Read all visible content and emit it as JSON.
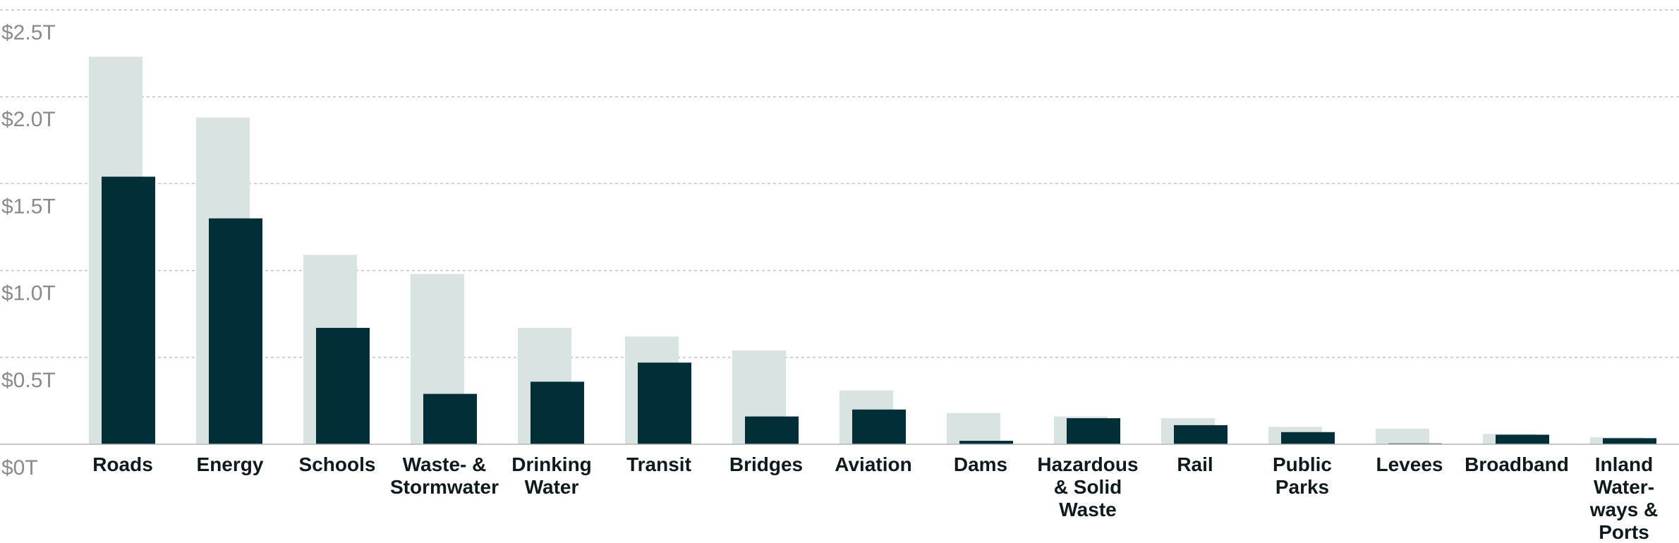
{
  "chart_data": {
    "type": "bar",
    "categories": [
      [
        "Roads"
      ],
      [
        "Energy"
      ],
      [
        "Schools"
      ],
      [
        "Waste- &",
        "Stormwater"
      ],
      [
        "Drinking",
        "Water"
      ],
      [
        "Transit"
      ],
      [
        "Bridges"
      ],
      [
        "Aviation"
      ],
      [
        "Dams"
      ],
      [
        "Hazardous",
        "& Solid",
        "Waste"
      ],
      [
        "Rail"
      ],
      [
        "Public",
        "Parks"
      ],
      [
        "Levees"
      ],
      [
        "Broadband"
      ],
      [
        "Inland",
        "Water-",
        "ways &",
        "Ports"
      ]
    ],
    "series": [
      {
        "color": "#d9e3e1",
        "values": [
          2.23,
          1.88,
          1.09,
          0.98,
          0.67,
          0.62,
          0.54,
          0.31,
          0.18,
          0.16,
          0.15,
          0.1,
          0.09,
          0.06,
          0.04
        ]
      },
      {
        "color": "#022e37",
        "values": [
          1.54,
          1.3,
          0.67,
          0.29,
          0.36,
          0.47,
          0.16,
          0.2,
          0.02,
          0.15,
          0.11,
          0.07,
          0.005,
          0.055,
          0.035
        ]
      }
    ],
    "ylim": [
      0,
      2.5
    ],
    "yticks": [
      {
        "value": 2.5,
        "label": "$2.5T"
      },
      {
        "value": 2.0,
        "label": "$2.0T"
      },
      {
        "value": 1.5,
        "label": "$1.5T"
      },
      {
        "value": 1.0,
        "label": "$1.0T"
      },
      {
        "value": 0.5,
        "label": "$0.5T"
      },
      {
        "value": 0,
        "label": "$0T"
      }
    ],
    "grid": true
  }
}
